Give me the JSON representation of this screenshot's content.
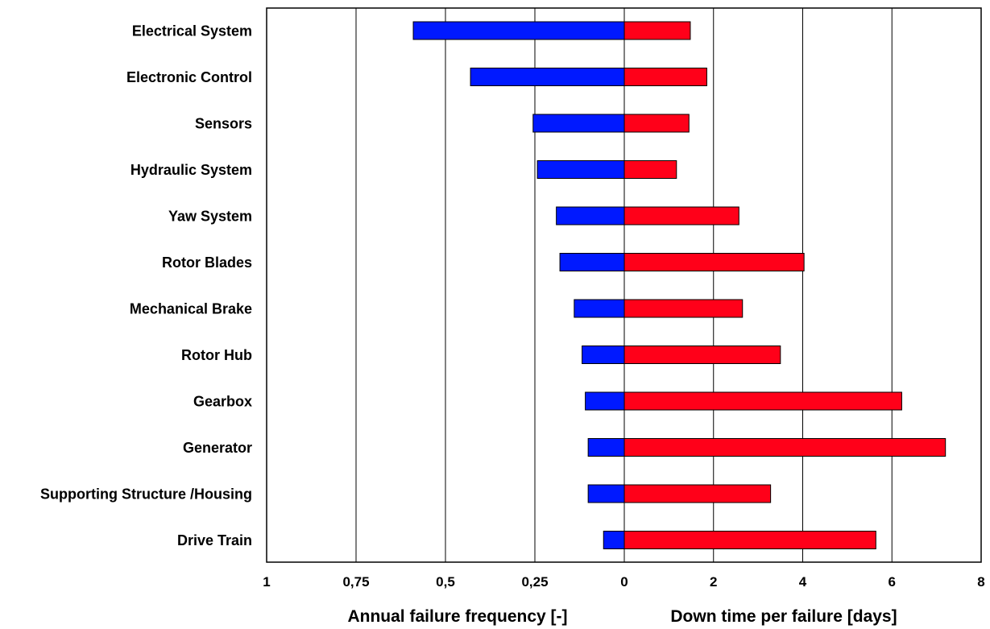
{
  "chart_data": {
    "type": "bar",
    "orientation": "horizontal",
    "layout": "back-to-back",
    "categories": [
      "Electrical System",
      "Electronic Control",
      "Sensors",
      "Hydraulic System",
      "Yaw System",
      "Rotor Blades",
      "Mechanical Brake",
      "Rotor Hub",
      "Gearbox",
      "Generator",
      "Supporting Structure /Housing",
      "Drive Train"
    ],
    "series": [
      {
        "name": "Annual failure frequency [-]",
        "side": "left",
        "color": "#0019ff",
        "values": [
          0.59,
          0.43,
          0.255,
          0.243,
          0.19,
          0.18,
          0.14,
          0.118,
          0.109,
          0.101,
          0.101,
          0.058
        ]
      },
      {
        "name": "Down time per failure [days]",
        "side": "right",
        "color": "#ff0019",
        "values": [
          1.48,
          1.85,
          1.45,
          1.17,
          2.57,
          4.03,
          2.65,
          3.5,
          6.22,
          7.2,
          3.28,
          5.64
        ]
      }
    ],
    "left_axis": {
      "label": "Annual failure frequency [-]",
      "ticks": [
        "1",
        "0,75",
        "0,5",
        "0,25",
        "0"
      ],
      "tick_values": [
        1,
        0.75,
        0.5,
        0.25,
        0
      ],
      "range": [
        0,
        1
      ],
      "reversed": true
    },
    "right_axis": {
      "label": "Down time per failure [days]",
      "ticks": [
        "2",
        "4",
        "6",
        "8"
      ],
      "tick_values": [
        2,
        4,
        6,
        8
      ],
      "range": [
        0,
        8
      ]
    },
    "grid": true,
    "legend": "none",
    "colors": {
      "frequency_bar": "#0019ff",
      "downtime_bar": "#ff0019",
      "grid": "#000000",
      "frame": "#000000"
    }
  }
}
